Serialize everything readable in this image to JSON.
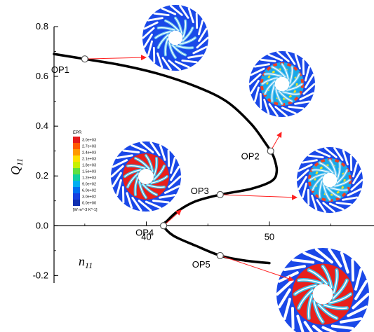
{
  "chart_data": {
    "type": "line",
    "title": "",
    "xlabel": "n",
    "xlabel_sub": "11",
    "ylabel": "Q",
    "ylabel_sub": "11",
    "xlim": [
      32.5,
      58.5
    ],
    "ylim": [
      -0.23,
      0.8
    ],
    "x_ticks": [
      40,
      50
    ],
    "y_ticks": [
      0.8,
      0.6,
      0.4,
      0.2,
      0.0,
      -0.2
    ],
    "y_tick_labels": [
      "0.8",
      "0.6",
      "0.4",
      "0.2",
      "0.0",
      "-0.2"
    ],
    "grid": false,
    "series": [
      {
        "values": [
          [
            32.5,
            0.69
          ],
          [
            35,
            0.67
          ],
          [
            38,
            0.645
          ],
          [
            41,
            0.61
          ],
          [
            44,
            0.56
          ],
          [
            46.5,
            0.5
          ],
          [
            48.5,
            0.41
          ],
          [
            49.7,
            0.33
          ],
          [
            50.1,
            0.3
          ],
          [
            50.4,
            0.27
          ],
          [
            50.6,
            0.22
          ],
          [
            50.2,
            0.18
          ],
          [
            48.5,
            0.148
          ],
          [
            46,
            0.125
          ],
          [
            44,
            0.098
          ],
          [
            42.6,
            0.06
          ],
          [
            41.7,
            0.02
          ],
          [
            41.4,
            0.0
          ],
          [
            42.2,
            -0.04
          ],
          [
            44,
            -0.08
          ],
          [
            46,
            -0.12
          ],
          [
            48,
            -0.14
          ],
          [
            50,
            -0.15
          ]
        ]
      }
    ],
    "operating_points": [
      {
        "label": "OP1",
        "x": 35,
        "y": 0.67
      },
      {
        "label": "OP2",
        "x": 50.1,
        "y": 0.3
      },
      {
        "label": "OP3",
        "x": 46,
        "y": 0.125
      },
      {
        "label": "OP4",
        "x": 41.4,
        "y": 0.0
      },
      {
        "label": "OP5",
        "x": 46,
        "y": -0.12
      }
    ],
    "legend": {
      "title": "EPR",
      "unit": "[W m^-3 K^-1]",
      "entries": [
        "3.0e+03",
        "2.7e+03",
        "2.4e+03",
        "2.1e+03",
        "1.8e+03",
        "1.5e+03",
        "1.2e+03",
        "9.0e+02",
        "6.0e+02",
        "3.0e+02",
        "0.0e+00"
      ],
      "colors": [
        "#e41a1c",
        "#ff5a00",
        "#ff9a00",
        "#ffe000",
        "#c8f000",
        "#60e040",
        "#10d0a0",
        "#00b0f0",
        "#0070f0",
        "#1840e0",
        "#1030b0"
      ]
    }
  }
}
